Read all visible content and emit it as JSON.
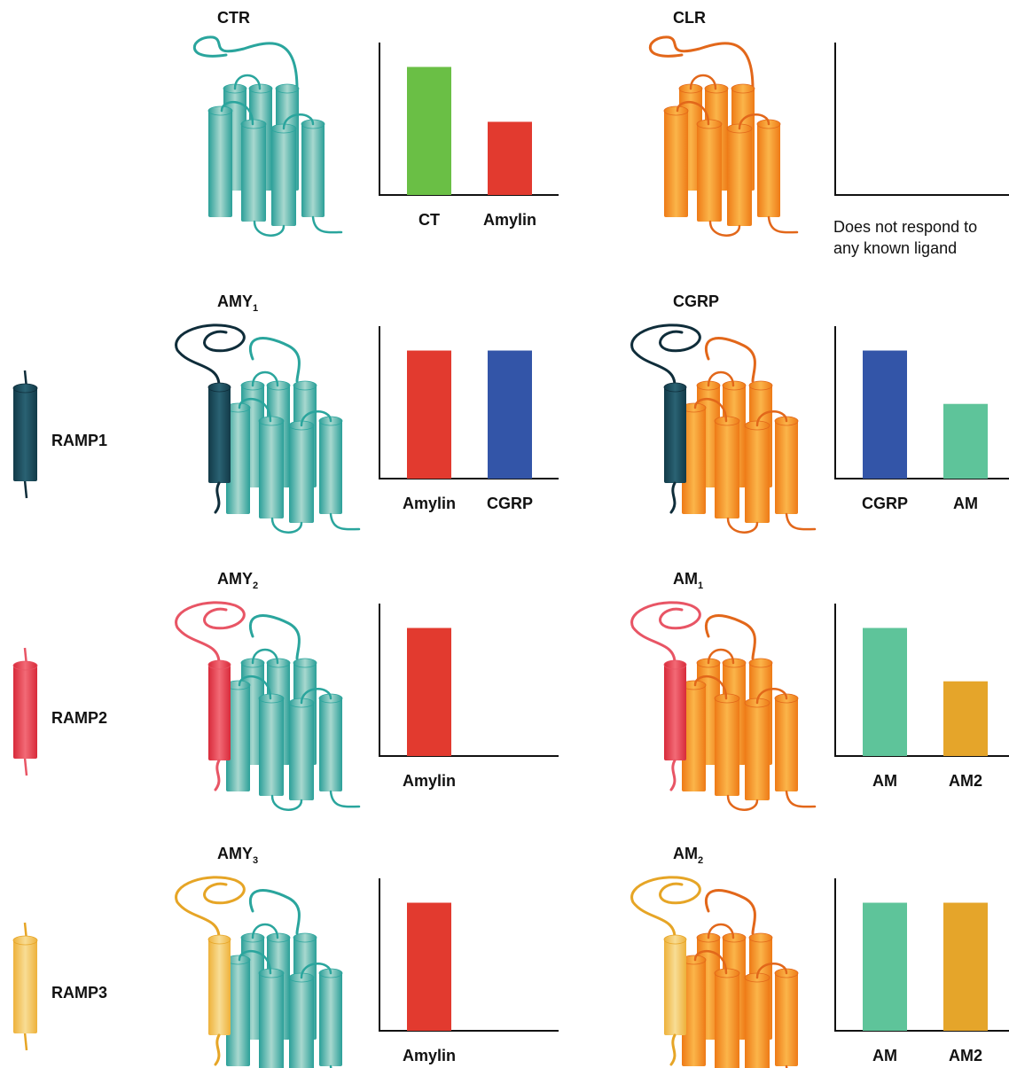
{
  "rows": [
    {
      "ramp": null,
      "panels": [
        {
          "title": "CTR",
          "receptor_color": "teal",
          "bars": [
            {
              "label": "CT",
              "value": 84,
              "color": "#6abf45"
            },
            {
              "label": "Amylin",
              "value": 48,
              "color": "#e23a2f"
            }
          ],
          "ylim": [
            0,
            100
          ]
        },
        {
          "title": "CLR",
          "receptor_color": "orange",
          "bars": [],
          "ylim": [
            0,
            100
          ],
          "note": [
            "Does not respond to",
            "any known ligand"
          ]
        }
      ]
    },
    {
      "ramp": {
        "label": "RAMP1",
        "color": "ramp1"
      },
      "panels": [
        {
          "title": "AMY",
          "sub": "1",
          "receptor_color": "teal",
          "bars": [
            {
              "label": "Amylin",
              "value": 84,
              "color": "#e23a2f"
            },
            {
              "label": "CGRP",
              "value": 84,
              "color": "#3355a8"
            }
          ],
          "ylim": [
            0,
            100
          ]
        },
        {
          "title": "CGRP",
          "receptor_color": "orange",
          "bars": [
            {
              "label": "CGRP",
              "value": 84,
              "color": "#3355a8"
            },
            {
              "label": "AM",
              "value": 49,
              "color": "#5ec49a"
            }
          ],
          "ylim": [
            0,
            100
          ]
        }
      ]
    },
    {
      "ramp": {
        "label": "RAMP2",
        "color": "ramp2"
      },
      "panels": [
        {
          "title": "AMY",
          "sub": "2",
          "receptor_color": "teal",
          "bars": [
            {
              "label": "Amylin",
              "value": 84,
              "color": "#e23a2f"
            }
          ],
          "ylim": [
            0,
            100
          ]
        },
        {
          "title": "AM",
          "sub": "1",
          "receptor_color": "orange",
          "bars": [
            {
              "label": "AM",
              "value": 84,
              "color": "#5ec49a"
            },
            {
              "label": "AM2",
              "value": 49,
              "color": "#e5a52a"
            }
          ],
          "ylim": [
            0,
            100
          ]
        }
      ]
    },
    {
      "ramp": {
        "label": "RAMP3",
        "color": "ramp3"
      },
      "panels": [
        {
          "title": "AMY",
          "sub": "3",
          "receptor_color": "teal",
          "bars": [
            {
              "label": "Amylin",
              "value": 84,
              "color": "#e23a2f"
            }
          ],
          "ylim": [
            0,
            100
          ]
        },
        {
          "title": "AM",
          "sub": "2",
          "receptor_color": "orange",
          "bars": [
            {
              "label": "AM",
              "value": 84,
              "color": "#5ec49a"
            },
            {
              "label": "AM2",
              "value": 84,
              "color": "#e5a52a"
            }
          ],
          "ylim": [
            0,
            100
          ]
        }
      ]
    }
  ]
}
